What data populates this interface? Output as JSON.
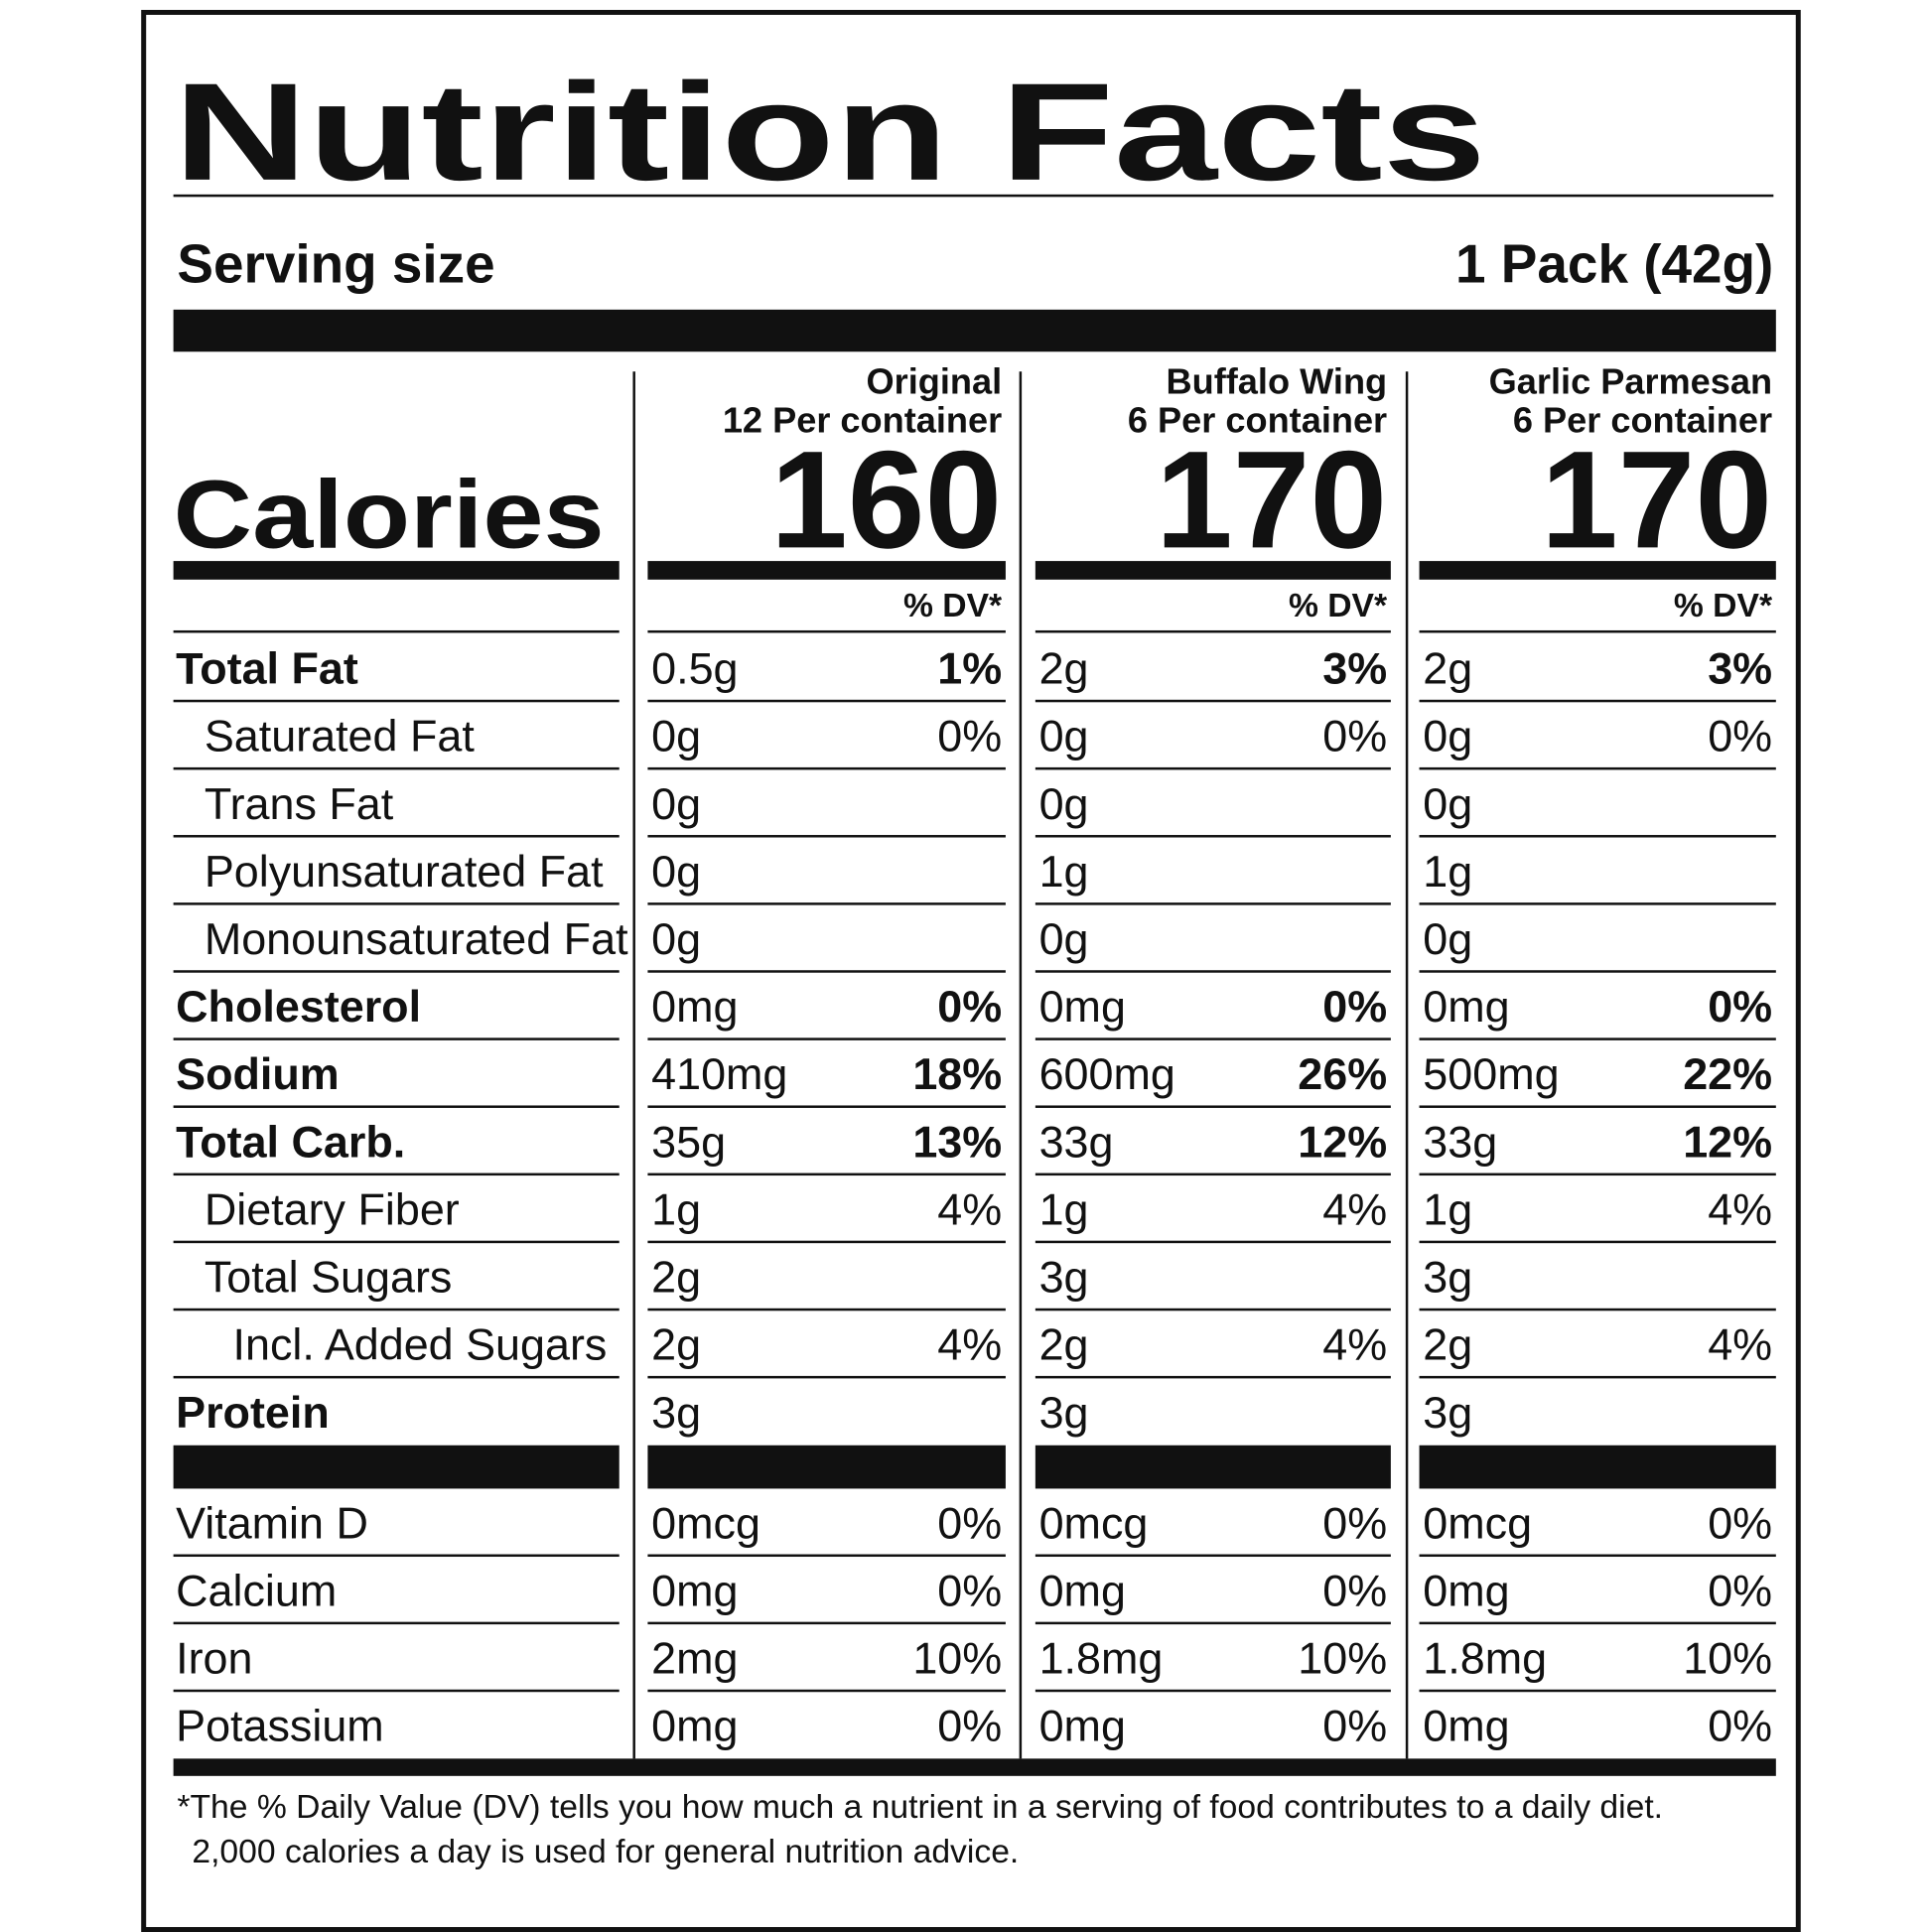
{
  "title": "Nutrition Facts",
  "serving_size": {
    "label": "Serving size",
    "value": "1 Pack (42g)"
  },
  "calories_label": "Calories",
  "dv_header": "% DV*",
  "products": [
    {
      "name": "Original",
      "servings": "12 Per container",
      "calories": 160
    },
    {
      "name": "Buffalo Wing",
      "servings": "6 Per container",
      "calories": 170
    },
    {
      "name": "Garlic Parmesan",
      "servings": "6 Per container",
      "calories": 170
    }
  ],
  "nutrients": [
    {
      "name": "Total Fat",
      "indent": 0,
      "bold": true,
      "values": [
        {
          "amount": "0.5g",
          "dv": "1%"
        },
        {
          "amount": "2g",
          "dv": "3%"
        },
        {
          "amount": "2g",
          "dv": "3%"
        }
      ]
    },
    {
      "name": "Saturated Fat",
      "indent": 1,
      "bold": false,
      "values": [
        {
          "amount": "0g",
          "dv": "0%"
        },
        {
          "amount": "0g",
          "dv": "0%"
        },
        {
          "amount": "0g",
          "dv": "0%"
        }
      ]
    },
    {
      "name": "Trans Fat",
      "indent": 1,
      "bold": false,
      "values": [
        {
          "amount": "0g"
        },
        {
          "amount": "0g"
        },
        {
          "amount": "0g"
        }
      ]
    },
    {
      "name": "Polyunsaturated Fat",
      "indent": 1,
      "bold": false,
      "values": [
        {
          "amount": "0g"
        },
        {
          "amount": "1g"
        },
        {
          "amount": "1g"
        }
      ]
    },
    {
      "name": "Monounsaturated Fat",
      "indent": 1,
      "bold": false,
      "values": [
        {
          "amount": "0g"
        },
        {
          "amount": "0g"
        },
        {
          "amount": "0g"
        }
      ]
    },
    {
      "name": "Cholesterol",
      "indent": 0,
      "bold": true,
      "values": [
        {
          "amount": "0mg",
          "dv": "0%"
        },
        {
          "amount": "0mg",
          "dv": "0%"
        },
        {
          "amount": "0mg",
          "dv": "0%"
        }
      ]
    },
    {
      "name": "Sodium",
      "indent": 0,
      "bold": true,
      "values": [
        {
          "amount": "410mg",
          "dv": "18%"
        },
        {
          "amount": "600mg",
          "dv": "26%"
        },
        {
          "amount": "500mg",
          "dv": "22%"
        }
      ]
    },
    {
      "name": "Total Carb.",
      "indent": 0,
      "bold": true,
      "values": [
        {
          "amount": "35g",
          "dv": "13%"
        },
        {
          "amount": "33g",
          "dv": "12%"
        },
        {
          "amount": "33g",
          "dv": "12%"
        }
      ]
    },
    {
      "name": "Dietary Fiber",
      "indent": 1,
      "bold": false,
      "values": [
        {
          "amount": "1g",
          "dv": "4%"
        },
        {
          "amount": "1g",
          "dv": "4%"
        },
        {
          "amount": "1g",
          "dv": "4%"
        }
      ]
    },
    {
      "name": "Total Sugars",
      "indent": 1,
      "bold": false,
      "values": [
        {
          "amount": "2g"
        },
        {
          "amount": "3g"
        },
        {
          "amount": "3g"
        }
      ]
    },
    {
      "name": "Incl. Added Sugars",
      "indent": 2,
      "bold": false,
      "values": [
        {
          "amount": "2g",
          "dv": "4%"
        },
        {
          "amount": "2g",
          "dv": "4%"
        },
        {
          "amount": "2g",
          "dv": "4%"
        }
      ]
    },
    {
      "name": "Protein",
      "indent": 0,
      "bold": true,
      "values": [
        {
          "amount": "3g"
        },
        {
          "amount": "3g"
        },
        {
          "amount": "3g"
        }
      ]
    }
  ],
  "vitamins": [
    {
      "name": "Vitamin D",
      "values": [
        {
          "amount": "0mcg",
          "dv": "0%"
        },
        {
          "amount": "0mcg",
          "dv": "0%"
        },
        {
          "amount": "0mcg",
          "dv": "0%"
        }
      ]
    },
    {
      "name": "Calcium",
      "values": [
        {
          "amount": "0mg",
          "dv": "0%"
        },
        {
          "amount": "0mg",
          "dv": "0%"
        },
        {
          "amount": "0mg",
          "dv": "0%"
        }
      ]
    },
    {
      "name": "Iron",
      "values": [
        {
          "amount": "2mg",
          "dv": "10%"
        },
        {
          "amount": "1.8mg",
          "dv": "10%"
        },
        {
          "amount": "1.8mg",
          "dv": "10%"
        }
      ]
    },
    {
      "name": "Potassium",
      "values": [
        {
          "amount": "0mg",
          "dv": "0%"
        },
        {
          "amount": "0mg",
          "dv": "0%"
        },
        {
          "amount": "0mg",
          "dv": "0%"
        }
      ]
    }
  ],
  "footnote": [
    "*The % Daily Value (DV) tells you how much a nutrient in a serving of food contributes to a daily diet.",
    "2,000 calories a day is used for general nutrition advice."
  ]
}
